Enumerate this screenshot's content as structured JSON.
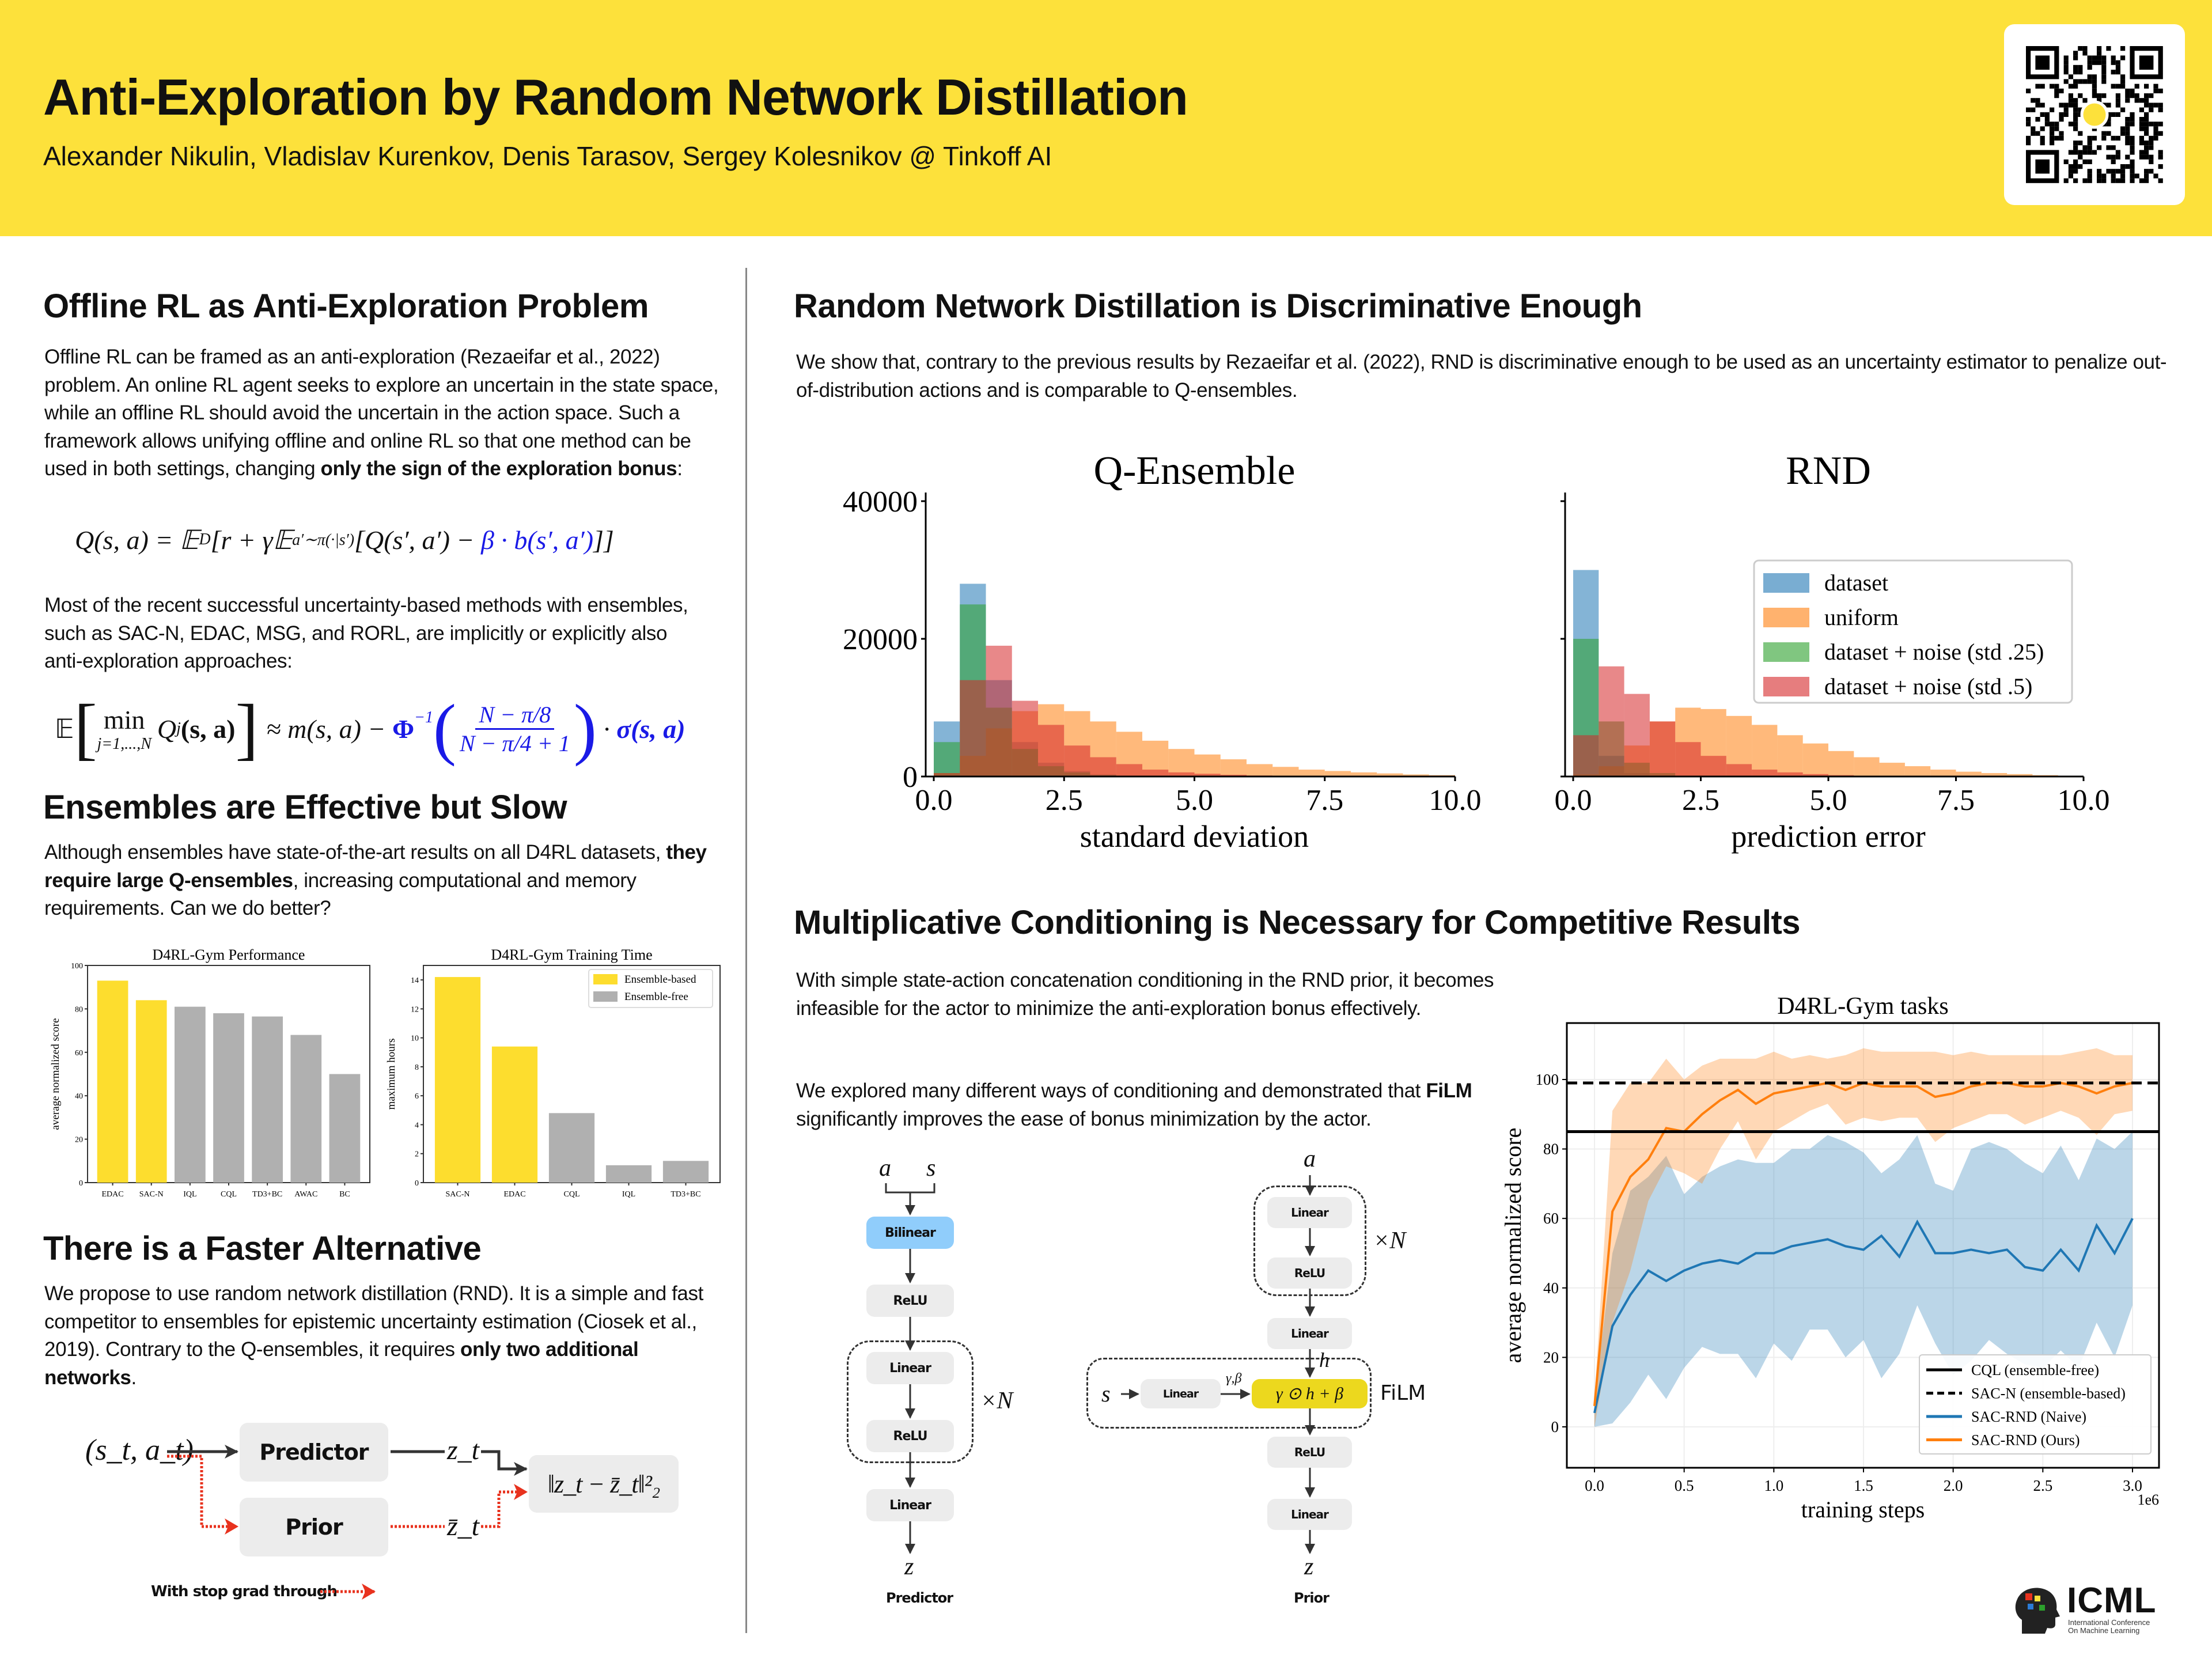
{
  "header": {
    "title": "Anti-Exploration by Random Network Distillation",
    "authors": "Alexander Nikulin, Vladislav Kurenkov, Denis Tarasov, Sergey Kolesnikov @ Tinkoff AI",
    "qr_icon": "qr-code"
  },
  "colors": {
    "header_bg": "#fde13b",
    "accent_blue": "#1a1ae6",
    "stop_grad_red": "#e8321e",
    "bilinear_blue": "#90cdfb",
    "film_yellow": "#ecd81e"
  },
  "left": {
    "s1": {
      "heading": "Offline RL as Anti-Exploration Problem",
      "p1_a": "Offline RL can be framed as an anti-exploration (Rezaeifar et al., 2022) problem. An online RL agent seeks to explore an uncertain in the state space, while an offline RL should avoid the uncertain in the action space. Such a framework allows unifying offline and online RL so that one method can be used in both settings, changing ",
      "p1_b": "only the sign of the exploration bonus",
      "p1_c": ":",
      "eq1": {
        "a": "Q(s, a) = 𝔼",
        "a_sub": "D",
        "b": "[r + γ𝔼",
        "b_sub": "a′∼π(·|s′)",
        "c": "[Q(s′, a′) − ",
        "blue": "β · b(s′, a′)",
        "d": "]]"
      },
      "p2": "Most of the recent successful uncertainty-based methods with ensembles, such as SAC-N, EDAC, MSG, and RORL, are implicitly or explicitly also anti-exploration approaches:",
      "eq2": {
        "e": "𝔼",
        "min": "min",
        "min_sub": "j=1,...,N",
        "q": "Q",
        "q_sub": "j",
        "q_arg": "(s, a)",
        "approx": "≈ m(s, a) − ",
        "phi": "Φ",
        "phi_sup": "−1",
        "num": "N − π/8",
        "den": "N − π/4 + 1",
        "dot": " · ",
        "sigma": "σ(s, a)"
      }
    },
    "s2": {
      "heading": "Ensembles are Effective but Slow",
      "p_a": "Although ensembles have state-of-the-art results on all D4RL datasets, ",
      "p_b": "they require large Q-ensembles",
      "p_c": ", increasing computational and memory requirements. Can we do better?"
    },
    "s3": {
      "heading": "There is a Faster Alternative",
      "p_a": "We propose to use random network distillation (RND). It is a simple and fast competitor to ensembles for epistemic uncertainty estimation (Ciosek et al., 2019). Contrary to the Q-ensembles, it requires ",
      "p_b": "only two additional networks",
      "p_c": ".",
      "diagram": {
        "input": "(s_t, a_t)",
        "predictor": "Predictor",
        "prior": "Prior",
        "z": "z_t",
        "zbar": "z̄_t",
        "loss": "‖z_t − z̄_t‖²₂",
        "legend": "With stop grad through"
      }
    }
  },
  "right": {
    "s1": {
      "heading": "Random Network Distillation is Discriminative Enough",
      "p": "We show that, contrary to the previous results by Rezaeifar et al. (2022), RND is discriminative enough to be used as an uncertainty estimator to penalize out-of-distribution actions and is comparable to Q-ensembles."
    },
    "s2": {
      "heading": "Multiplicative Conditioning is Necessary for Competitive Results",
      "p1": "With simple state-action concatenation conditioning in the RND prior, it becomes infeasible for the actor to minimize the anti-exploration bonus effectively.",
      "p2_a": "We explored many different ways of conditioning and demonstrated that ",
      "p2_b": "FiLM",
      "p2_c": " significantly improves the ease of bonus minimization by the actor.",
      "predictor": {
        "a": "a",
        "s": "s",
        "bilinear": "Bilinear",
        "relu1": "ReLU",
        "linear1": "Linear",
        "relu2": "ReLU",
        "linear2": "Linear",
        "times_n": "×N",
        "z": "z",
        "caption": "Predictor"
      },
      "prior": {
        "a": "a",
        "linear1": "Linear",
        "relu1": "ReLU",
        "times_n": "×N",
        "linear2": "Linear",
        "h": "h",
        "s": "s",
        "film_linear": "Linear",
        "gamma_beta": "γ,β",
        "film_op": "γ ⊙ h + β",
        "film_label": "FiLM",
        "relu2": "ReLU",
        "linear3": "Linear",
        "z": "z",
        "caption": "Prior"
      }
    }
  },
  "logo": {
    "name": "ICML",
    "subtitle_1": "International Conference",
    "subtitle_2": "On Machine Learning"
  },
  "chart_data": [
    {
      "type": "bar",
      "title": "D4RL-Gym Performance",
      "ylabel": "average normalized score",
      "xlabel": "",
      "categories": [
        "EDAC",
        "SAC-N",
        "IQL",
        "CQL",
        "TD3+BC",
        "AWAC",
        "BC"
      ],
      "values": [
        93,
        84,
        81,
        78,
        76.5,
        68,
        50
      ],
      "groups": [
        "Ensemble-based",
        "Ensemble-based",
        "Ensemble-free",
        "Ensemble-free",
        "Ensemble-free",
        "Ensemble-free",
        "Ensemble-free"
      ],
      "ylim": [
        0,
        100
      ],
      "yticks": [
        0,
        20,
        40,
        60,
        80,
        100
      ],
      "colors": {
        "Ensemble-based": "#fddd2e",
        "Ensemble-free": "#b0b0b0"
      }
    },
    {
      "type": "bar",
      "title": "D4RL-Gym Training Time",
      "ylabel": "maximum hours",
      "xlabel": "",
      "categories": [
        "SAC-N",
        "EDAC",
        "CQL",
        "IQL",
        "TD3+BC"
      ],
      "values": [
        14.2,
        9.4,
        4.8,
        1.2,
        1.5
      ],
      "groups": [
        "Ensemble-based",
        "Ensemble-based",
        "Ensemble-free",
        "Ensemble-free",
        "Ensemble-free"
      ],
      "ylim": [
        0,
        15
      ],
      "yticks": [
        0,
        2,
        4,
        6,
        8,
        10,
        12,
        14
      ],
      "legend": [
        "Ensemble-based",
        "Ensemble-free"
      ],
      "legend_position": "top-right",
      "colors": {
        "Ensemble-based": "#fddd2e",
        "Ensemble-free": "#b0b0b0"
      }
    },
    {
      "type": "histogram",
      "title": "Q-Ensemble",
      "xlabel": "standard deviation",
      "ylabel": "",
      "xlim": [
        0,
        10
      ],
      "ylim": [
        0,
        40000
      ],
      "xticks": [
        "0.0",
        "2.5",
        "5.0",
        "7.5",
        "10.0"
      ],
      "yticks": [
        "0",
        "20000",
        "40000"
      ],
      "bin_width": 0.5,
      "series": [
        {
          "name": "dataset",
          "color": "#1f77b4",
          "values": [
            8000,
            28000,
            14000,
            5000,
            2000,
            800,
            300,
            100,
            0,
            0,
            0,
            0,
            0,
            0,
            0,
            0,
            0,
            0,
            0,
            0
          ]
        },
        {
          "name": "uniform",
          "color": "#ff7f0e",
          "values": [
            500,
            3000,
            7000,
            9500,
            10500,
            9500,
            8000,
            6500,
            5200,
            4000,
            3200,
            2500,
            1800,
            1400,
            1000,
            800,
            600,
            450,
            300,
            200
          ]
        },
        {
          "name": "dataset + noise (std .25)",
          "color": "#2ca02c",
          "values": [
            5000,
            25000,
            10000,
            4000,
            1500,
            600,
            200,
            50,
            0,
            0,
            0,
            0,
            0,
            0,
            0,
            0,
            0,
            0,
            0,
            0
          ]
        },
        {
          "name": "dataset + noise (std .5)",
          "color": "#d62728",
          "values": [
            500,
            14000,
            19000,
            11000,
            7500,
            4500,
            2800,
            1800,
            1000,
            600,
            400,
            250,
            150,
            100,
            50,
            0,
            0,
            0,
            0,
            0
          ]
        }
      ]
    },
    {
      "type": "histogram",
      "title": "RND",
      "xlabel": "prediction error",
      "ylabel": "",
      "xlim": [
        0,
        10
      ],
      "ylim": [
        0,
        40000
      ],
      "xticks": [
        "0.0",
        "2.5",
        "5.0",
        "7.5",
        "10.0"
      ],
      "bin_width": 0.5,
      "legend_position": "upper right",
      "series": [
        {
          "name": "dataset",
          "color": "#1f77b4",
          "values": [
            30000,
            3000,
            500,
            100,
            0,
            0,
            0,
            0,
            0,
            0,
            0,
            0,
            0,
            0,
            0,
            0,
            0,
            0,
            0,
            0
          ]
        },
        {
          "name": "uniform",
          "color": "#ff7f0e",
          "values": [
            300,
            1500,
            4500,
            8000,
            10000,
            9800,
            8800,
            7500,
            6000,
            4800,
            3700,
            2800,
            2000,
            1500,
            1000,
            700,
            500,
            350,
            200,
            100
          ]
        },
        {
          "name": "dataset + noise (std .25)",
          "color": "#2ca02c",
          "values": [
            20000,
            8000,
            2000,
            500,
            100,
            0,
            0,
            0,
            0,
            0,
            0,
            0,
            0,
            0,
            0,
            0,
            0,
            0,
            0,
            0
          ]
        },
        {
          "name": "dataset + noise (std .5)",
          "color": "#d62728",
          "values": [
            6000,
            16000,
            12000,
            8000,
            5000,
            3000,
            1800,
            1000,
            600,
            350,
            200,
            100,
            50,
            0,
            0,
            0,
            0,
            0,
            0,
            0
          ]
        }
      ]
    },
    {
      "type": "line",
      "title": "D4RL-Gym tasks",
      "xlabel": "training steps",
      "ylabel": "average normalized score",
      "x_multiplier": "1e6",
      "xlim": [
        -0.15,
        3.15
      ],
      "ylim": [
        -10,
        115
      ],
      "xticks": [
        "0.0",
        "0.5",
        "1.0",
        "1.5",
        "2.0",
        "2.5",
        "3.0"
      ],
      "yticks": [
        "0",
        "20",
        "40",
        "60",
        "80",
        "100"
      ],
      "grid": true,
      "legend_position": "lower right",
      "x": [
        0,
        0.1,
        0.2,
        0.3,
        0.4,
        0.5,
        0.6,
        0.7,
        0.8,
        0.9,
        1.0,
        1.1,
        1.2,
        1.3,
        1.4,
        1.5,
        1.6,
        1.7,
        1.8,
        1.9,
        2.0,
        2.1,
        2.2,
        2.3,
        2.4,
        2.5,
        2.6,
        2.7,
        2.8,
        2.9,
        3.0
      ],
      "hlines": [
        {
          "name": "CQL (ensemble-free)",
          "value": 85,
          "style": "solid",
          "color": "#000000"
        },
        {
          "name": "SAC-N (ensemble-based)",
          "value": 99,
          "style": "dashed",
          "color": "#000000"
        }
      ],
      "series": [
        {
          "name": "SAC-RND (Naive)",
          "color": "#1f77b4",
          "values": [
            4,
            29,
            38,
            45,
            42,
            45,
            47,
            48,
            47,
            50,
            50,
            52,
            53,
            54,
            52,
            51,
            55,
            49,
            59,
            50,
            50,
            51,
            50,
            51,
            46,
            45,
            51,
            45,
            58,
            50,
            60
          ],
          "lower": [
            0,
            1,
            7,
            15,
            8,
            17,
            23,
            21,
            21,
            14,
            24,
            19,
            28,
            28,
            20,
            25,
            14,
            21,
            35,
            24,
            15,
            19,
            25,
            21,
            18,
            17,
            22,
            17,
            30,
            20,
            35
          ],
          "upper": [
            8,
            50,
            68,
            72,
            78,
            67,
            72,
            75,
            77,
            76,
            76,
            80,
            80,
            84,
            82,
            79,
            73,
            77,
            84,
            70,
            68,
            80,
            82,
            80,
            76,
            73,
            81,
            71,
            83,
            80,
            85
          ]
        },
        {
          "name": "SAC-RND (Ours)",
          "color": "#ff7f0e",
          "values": [
            6,
            62,
            72,
            77,
            86,
            85,
            90,
            94,
            97,
            93,
            96,
            97,
            98,
            99,
            97,
            99,
            98,
            98,
            98,
            95,
            96,
            98,
            99,
            99,
            98,
            98,
            99,
            98,
            96,
            98,
            99
          ],
          "lower": [
            0,
            30,
            45,
            65,
            75,
            73,
            70,
            80,
            88,
            77,
            85,
            88,
            91,
            93,
            87,
            89,
            88,
            89,
            89,
            82,
            86,
            88,
            90,
            90,
            87,
            89,
            91,
            89,
            84,
            90,
            91
          ],
          "upper": [
            8,
            91,
            99,
            99,
            106,
            100,
            104,
            106,
            106,
            106,
            108,
            106,
            107,
            106,
            107,
            109,
            108,
            108,
            108,
            108,
            107,
            108,
            107,
            107,
            107,
            107,
            107,
            108,
            109,
            107,
            107
          ]
        }
      ]
    }
  ]
}
